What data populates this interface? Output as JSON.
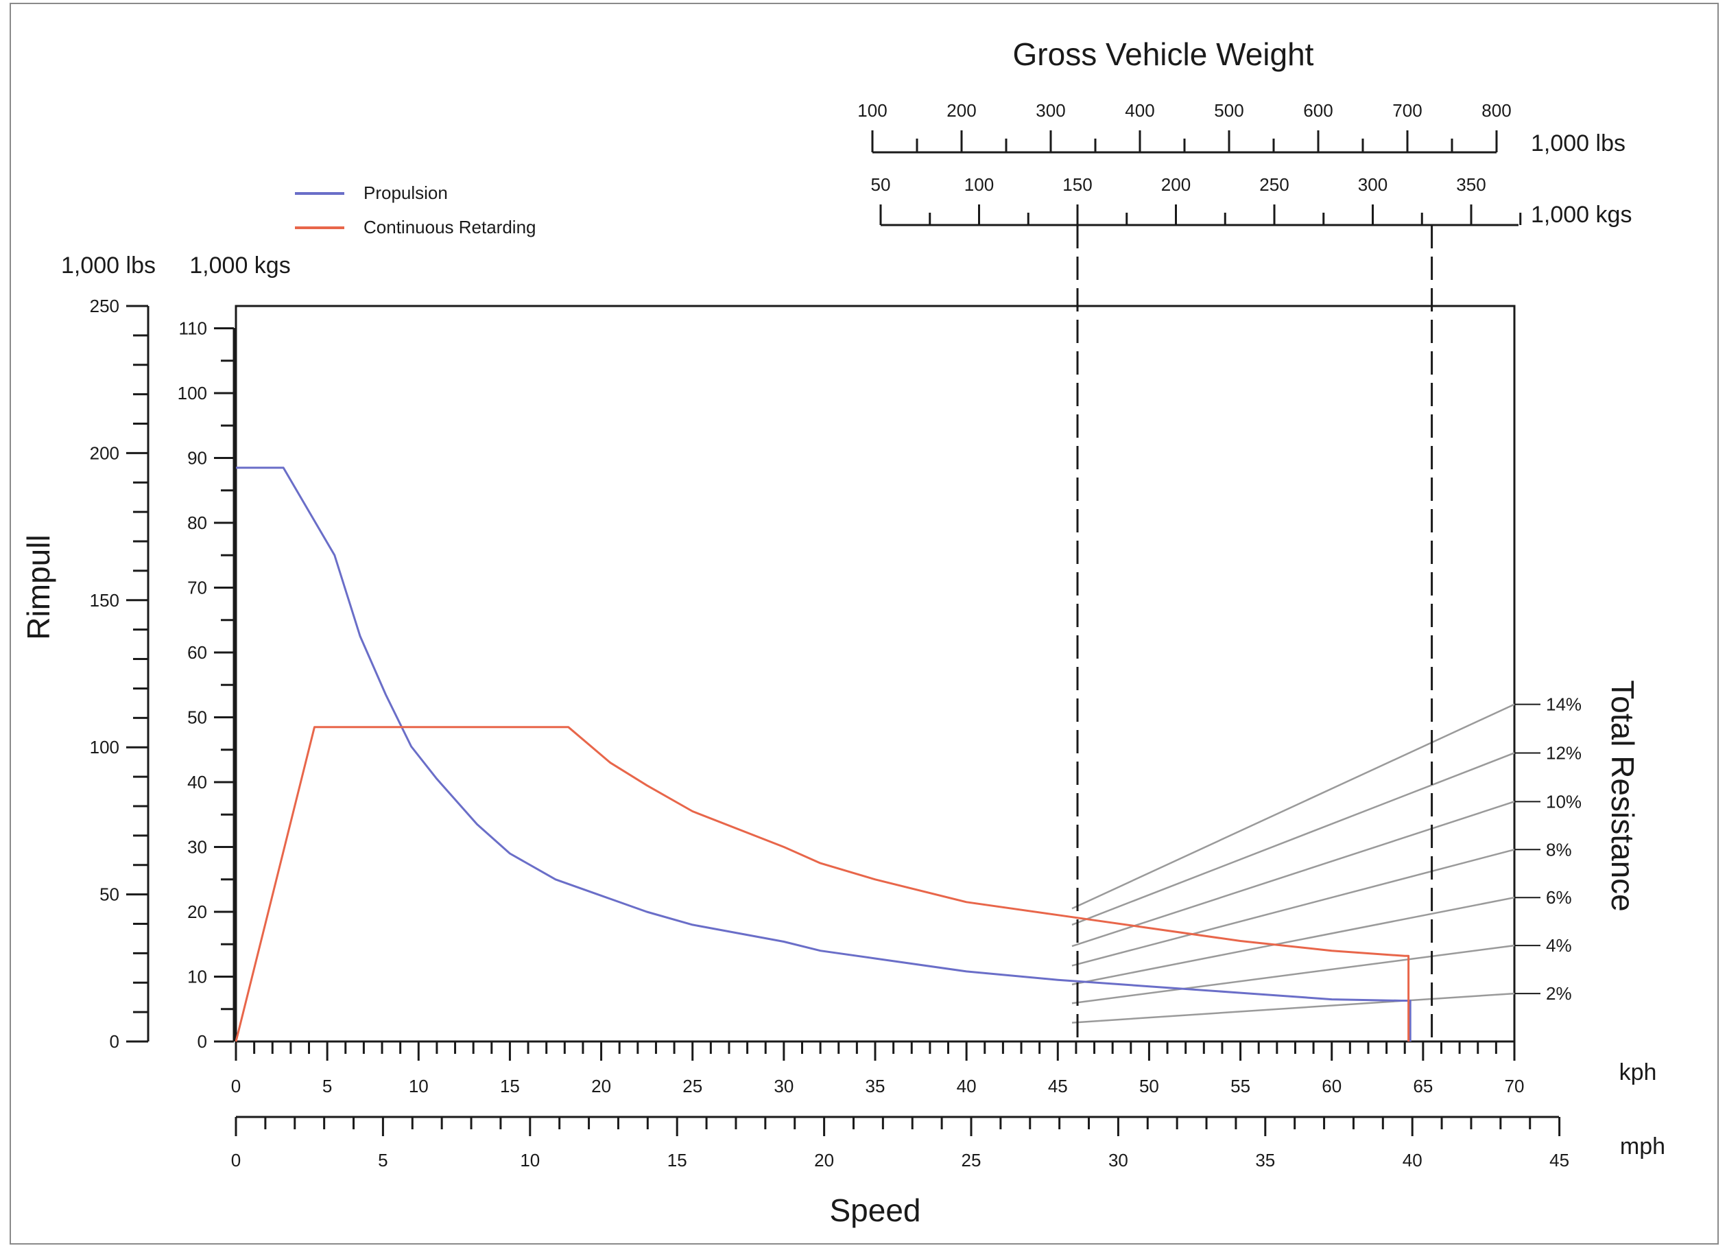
{
  "chart_data": {
    "type": "line",
    "title": "Gross Vehicle Weight",
    "xlabel": "Speed",
    "ylabel": "Rimpull",
    "right_label": "Total Resistance",
    "legend": [
      {
        "name": "Propulsion",
        "color": "#6a6ec8"
      },
      {
        "name": "Continuous Retarding",
        "color": "#e8664a"
      }
    ],
    "legend_position": "top-left",
    "grid": false,
    "axes": {
      "y_lbs": {
        "unit": "1,000 lbs",
        "range": [
          0,
          250
        ],
        "ticks": [
          "0",
          "50",
          "100",
          "150",
          "200",
          "250"
        ]
      },
      "y_kgs": {
        "unit": "1,000 kgs",
        "range": [
          0,
          113.4
        ],
        "ticks": [
          "0",
          "10",
          "20",
          "30",
          "40",
          "50",
          "60",
          "70",
          "80",
          "90",
          "100",
          "110"
        ]
      },
      "x_kph": {
        "unit": "kph",
        "range": [
          0,
          70
        ],
        "ticks": [
          "0",
          "5",
          "10",
          "15",
          "20",
          "25",
          "30",
          "35",
          "40",
          "45",
          "50",
          "55",
          "60",
          "65",
          "70"
        ]
      },
      "x_mph": {
        "unit": "mph",
        "range": [
          0,
          45
        ],
        "ticks": [
          "0",
          "5",
          "10",
          "15",
          "20",
          "25",
          "30",
          "35",
          "40",
          "45"
        ]
      },
      "gvw_lbs": {
        "unit": "1,000 lbs",
        "range": [
          100,
          800
        ],
        "ticks": [
          "100",
          "200",
          "300",
          "400",
          "500",
          "600",
          "700",
          "800"
        ]
      },
      "gvw_kgs": {
        "unit": "1,000 kgs",
        "range": [
          50,
          370
        ],
        "ticks": [
          "50",
          "100",
          "150",
          "250",
          "300",
          "350"
        ],
        "tick_values": [
          50,
          100,
          150,
          250,
          300,
          350
        ],
        "mid_tick_label": "200"
      },
      "grade_labels": [
        "14%",
        "12%",
        "10%",
        "8%",
        "6%",
        "4%",
        "2%"
      ]
    },
    "series": [
      {
        "name": "Propulsion",
        "color": "#6a6ec8",
        "x_kph": [
          0,
          2.6,
          5.4,
          6.8,
          8.2,
          9.6,
          11.0,
          13.2,
          15.0,
          17.5,
          20.0,
          22.5,
          25.0,
          30.0,
          32.0,
          35.0,
          40.0,
          45.0,
          50.0,
          55.0,
          60.0,
          63.8,
          64.3,
          64.3
        ],
        "y_kkg": [
          88.5,
          88.5,
          75.0,
          62.5,
          53.5,
          45.5,
          40.5,
          33.5,
          29.0,
          25.0,
          22.5,
          20.0,
          18.0,
          15.4,
          14.0,
          12.8,
          10.8,
          9.5,
          8.5,
          7.5,
          6.5,
          6.3,
          6.3,
          0
        ]
      },
      {
        "name": "Continuous Retarding",
        "color": "#e8664a",
        "x_kph": [
          0,
          4.3,
          18.2,
          20.5,
          22.5,
          25.0,
          30.0,
          32.0,
          35.0,
          40.0,
          45.0,
          50.0,
          55.0,
          60.0,
          64.0,
          64.2,
          64.2
        ],
        "y_kkg": [
          0,
          48.5,
          48.5,
          43.0,
          39.5,
          35.5,
          30.0,
          27.5,
          25.0,
          21.5,
          19.5,
          17.5,
          15.5,
          14.0,
          13.2,
          13.2,
          0
        ]
      }
    ],
    "gvw_reference_lines_kkg": [
      150,
      330
    ],
    "resistance_lines": [
      {
        "label": "14%",
        "y_start_kkg": 20.5,
        "y_end_kkg": 52.0
      },
      {
        "label": "12%",
        "y_start_kkg": 18.0,
        "y_end_kkg": 44.5
      },
      {
        "label": "10%",
        "y_start_kkg": 14.7,
        "y_end_kkg": 37.0
      },
      {
        "label": "8%",
        "y_start_kkg": 11.7,
        "y_end_kkg": 29.6
      },
      {
        "label": "6%",
        "y_start_kkg": 8.8,
        "y_end_kkg": 22.2
      },
      {
        "label": "4%",
        "y_start_kkg": 5.9,
        "y_end_kkg": 14.8
      },
      {
        "label": "2%",
        "y_start_kkg": 2.9,
        "y_end_kkg": 7.4
      }
    ]
  }
}
